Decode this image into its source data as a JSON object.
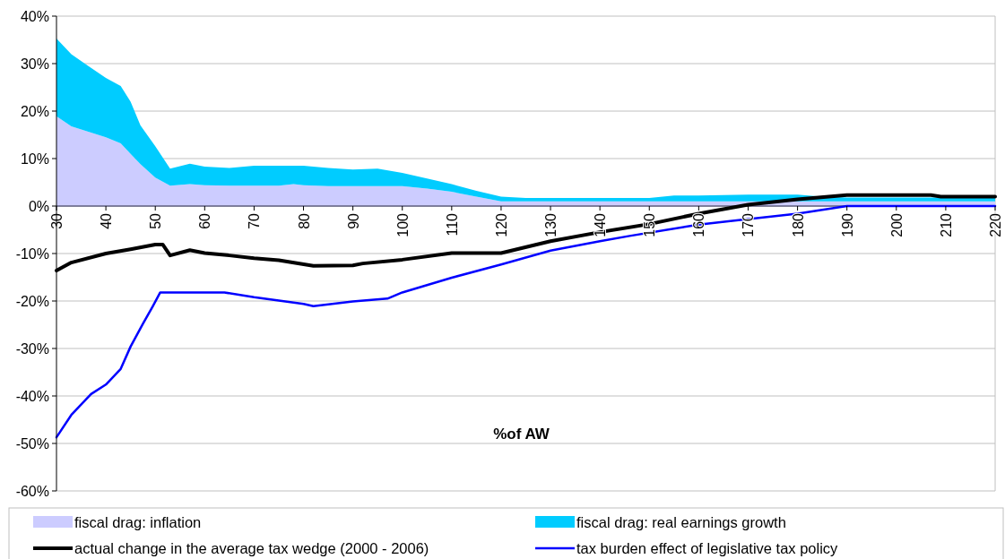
{
  "chart_data": {
    "type": "area",
    "xlabel": "%of AW",
    "stacked": true,
    "xlim": [
      30,
      220
    ],
    "xticks": [
      30,
      40,
      50,
      60,
      70,
      80,
      90,
      100,
      110,
      120,
      130,
      140,
      150,
      160,
      170,
      180,
      190,
      200,
      210,
      220
    ],
    "ylim": [
      -60,
      40
    ],
    "yticks": [
      {
        "value": -60,
        "label": "-60%"
      },
      {
        "value": -50,
        "label": "-50%"
      },
      {
        "value": -40,
        "label": "-40%"
      },
      {
        "value": -30,
        "label": "-30%"
      },
      {
        "value": -20,
        "label": "-20%"
      },
      {
        "value": -10,
        "label": "-10%"
      },
      {
        "value": 0,
        "label": "0%"
      },
      {
        "value": 10,
        "label": "10%"
      },
      {
        "value": 20,
        "label": "20%"
      },
      {
        "value": 30,
        "label": "30%"
      },
      {
        "value": 40,
        "label": "40%"
      }
    ],
    "grid": "y",
    "legend": "bottom",
    "series": [
      {
        "name": "fiscal drag: inflation",
        "color": "#ccccff",
        "x": [
          30,
          33,
          36,
          40,
          43,
          45,
          47,
          50,
          53,
          57,
          60,
          65,
          70,
          75,
          78,
          80,
          85,
          90,
          95,
          100,
          105,
          110,
          115,
          120,
          125,
          130,
          140,
          150,
          155,
          160,
          170,
          180,
          185,
          190,
          200,
          210,
          220
        ],
        "values": [
          18.9,
          16.8,
          15.8,
          14.5,
          13.2,
          11,
          8.8,
          6,
          4.3,
          4.6,
          4.4,
          4.3,
          4.3,
          4.3,
          4.6,
          4.4,
          4.2,
          4.2,
          4.2,
          4.2,
          3.7,
          3,
          2,
          1,
          1,
          1,
          1,
          1,
          1,
          1,
          1,
          1,
          1,
          1,
          1,
          1,
          1
        ]
      },
      {
        "name": "fiscal drag: real earnings growth",
        "color": "#00ccff",
        "x": [
          30,
          33,
          36,
          40,
          43,
          45,
          47,
          50,
          53,
          57,
          60,
          65,
          70,
          75,
          78,
          80,
          85,
          90,
          95,
          100,
          105,
          110,
          115,
          120,
          125,
          130,
          140,
          150,
          155,
          160,
          170,
          180,
          185,
          190,
          200,
          210,
          220
        ],
        "values": [
          16.4,
          15.2,
          14,
          12.5,
          12.1,
          11,
          8.2,
          6.6,
          3.6,
          4.3,
          3.9,
          3.7,
          4.2,
          4.2,
          3.9,
          4.1,
          3.8,
          3.5,
          3.7,
          2.8,
          2.1,
          1.6,
          1.2,
          1,
          0.7,
          0.7,
          0.7,
          0.7,
          1.2,
          1.2,
          1.4,
          1.4,
          1,
          0.8,
          0.8,
          0.8,
          0.8
        ]
      },
      {
        "name": "actual change in the average tax wedge (2000 - 2006)",
        "type": "line",
        "color": "#000000",
        "x": [
          30,
          33,
          40,
          45,
          50,
          51.5,
          53,
          57,
          60,
          65,
          70,
          75,
          82,
          90,
          92,
          100,
          110,
          120,
          130,
          140,
          150,
          160,
          170,
          180,
          190,
          207,
          209,
          220
        ],
        "values": [
          -13.6,
          -11.9,
          -10,
          -9.1,
          -8.1,
          -8.1,
          -10.4,
          -9.3,
          -9.9,
          -10.4,
          -11,
          -11.4,
          -12.6,
          -12.5,
          -12.1,
          -11.3,
          -9.9,
          -9.9,
          -7.4,
          -5.5,
          -3.8,
          -1.6,
          0.3,
          1.4,
          2.3,
          2.3,
          2,
          2
        ]
      },
      {
        "name": "tax burden effect of legislative tax policy",
        "type": "line",
        "color": "#0000ff",
        "x": [
          30,
          33,
          37,
          40,
          43,
          45,
          47.5,
          49.5,
          51,
          64,
          70,
          80,
          82,
          90,
          97,
          100,
          110,
          120,
          130,
          140,
          146,
          160,
          166,
          180,
          190,
          220
        ],
        "values": [
          -48.7,
          -44,
          -39.6,
          -37.6,
          -34.3,
          -29.6,
          -24.8,
          -21.1,
          -18.2,
          -18.2,
          -19.2,
          -20.6,
          -21.1,
          -20.1,
          -19.5,
          -18.2,
          -15.1,
          -12.3,
          -9.4,
          -7.4,
          -6.3,
          -3.9,
          -3.2,
          -1.6,
          0,
          0
        ]
      }
    ]
  }
}
